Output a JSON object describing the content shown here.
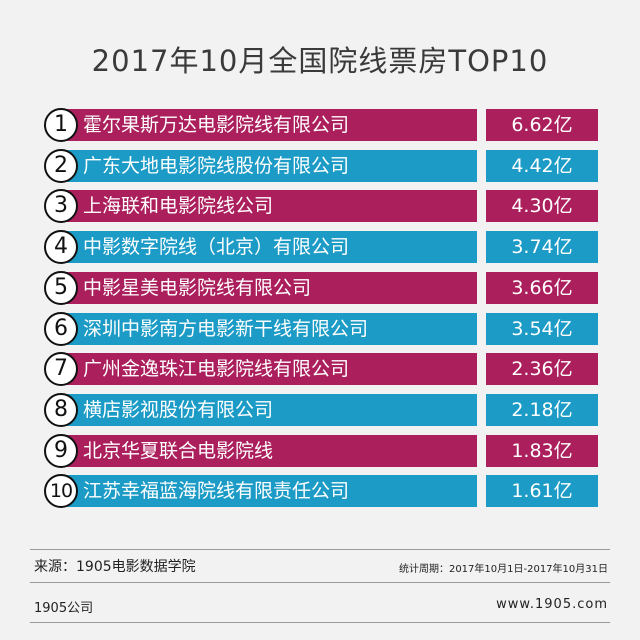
{
  "colors": {
    "magenta": "#ab1f5c",
    "blue": "#1b9bc6"
  },
  "chart_data": {
    "type": "table",
    "title": "2017年10月全国院线票房TOP10",
    "rows": [
      {
        "rank": "1",
        "name": "霍尔果斯万达电影院线有限公司",
        "value": 6.62,
        "label": "6.62亿"
      },
      {
        "rank": "2",
        "name": "广东大地电影院线股份有限公司",
        "value": 4.42,
        "label": "4.42亿"
      },
      {
        "rank": "3",
        "name": "上海联和电影院线公司",
        "value": 4.3,
        "label": "4.30亿"
      },
      {
        "rank": "4",
        "name": "中影数字院线（北京）有限公司",
        "value": 3.74,
        "label": "3.74亿"
      },
      {
        "rank": "5",
        "name": "中影星美电影院线有限公司",
        "value": 3.66,
        "label": "3.66亿"
      },
      {
        "rank": "6",
        "name": "深圳中影南方电影新干线有限公司",
        "value": 3.54,
        "label": "3.54亿"
      },
      {
        "rank": "7",
        "name": "广州金逸珠江电影院线有限公司",
        "value": 2.36,
        "label": "2.36亿"
      },
      {
        "rank": "8",
        "name": "横店影视股份有限公司",
        "value": 2.18,
        "label": "2.18亿"
      },
      {
        "rank": "9",
        "name": "北京华夏联合电影院线",
        "value": 1.83,
        "label": "1.83亿"
      },
      {
        "rank": "10",
        "name": "江苏幸福蓝海院线有限责任公司",
        "value": 1.61,
        "label": "1.61亿"
      }
    ]
  },
  "footer": {
    "source": "来源：1905电影数据学院",
    "period": "统计周期：2017年10月1日-2017年10月31日",
    "company": "1905公司",
    "site": "www.1905.com"
  }
}
